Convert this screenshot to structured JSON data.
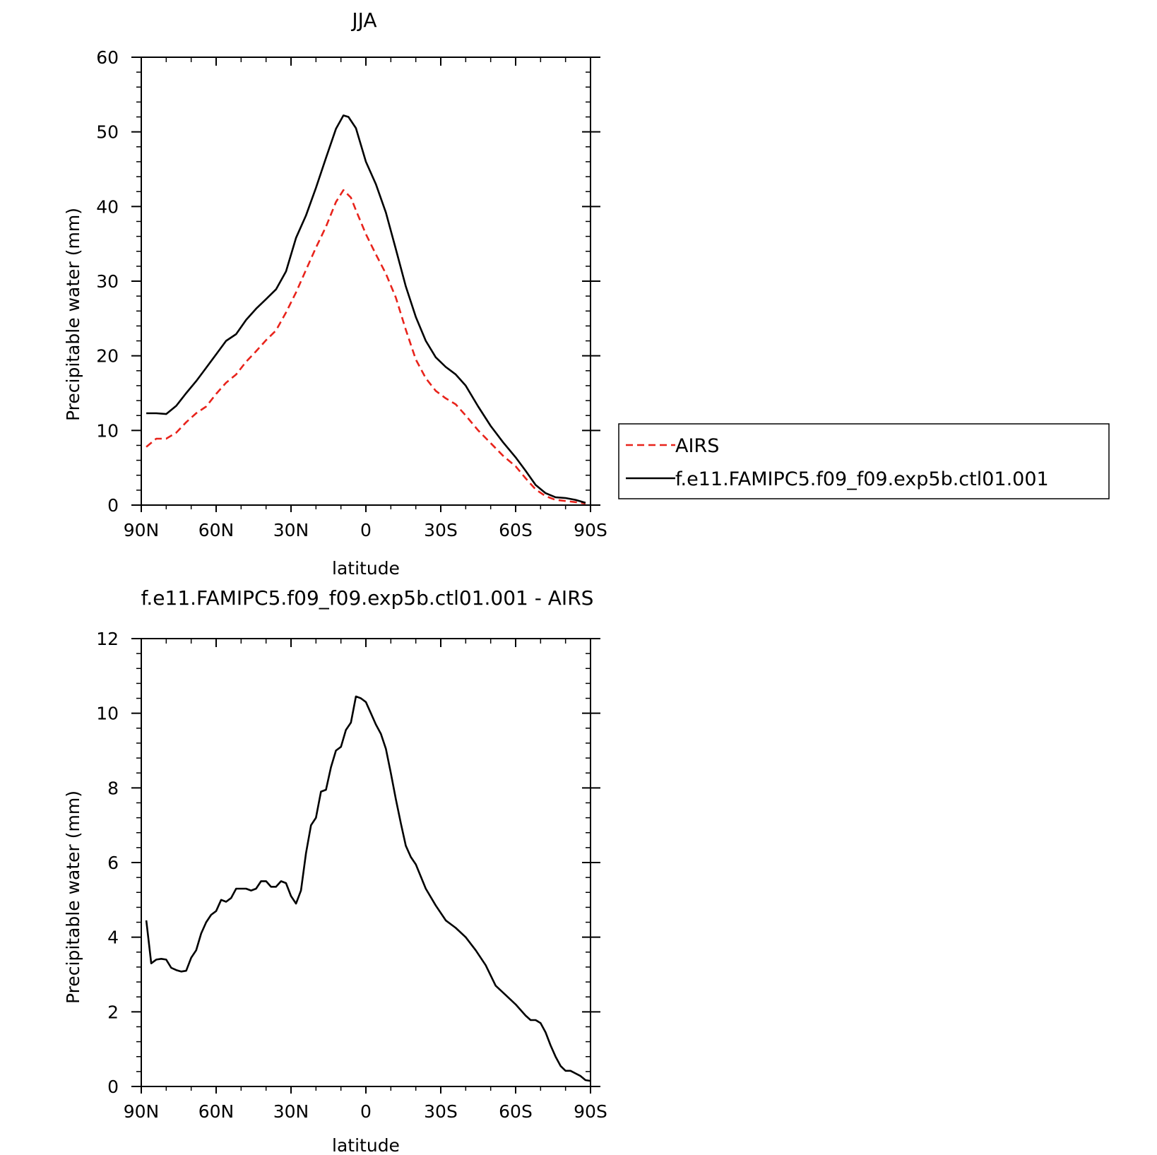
{
  "chart_data": [
    {
      "type": "line",
      "title": "JJA",
      "xlabel": "latitude",
      "ylabel": "Precipitable water (mm)",
      "xlim": [
        90,
        -90
      ],
      "ylim": [
        0,
        60
      ],
      "x_ticks": [
        90,
        60,
        30,
        0,
        -30,
        -60,
        -90
      ],
      "x_tick_labels": [
        "90N",
        "60N",
        "30N",
        "0",
        "30S",
        "60S",
        "90S"
      ],
      "y_ticks": [
        0,
        10,
        20,
        30,
        40,
        50,
        60
      ],
      "y_tick_labels": [
        "0",
        "10",
        "20",
        "30",
        "40",
        "50",
        "60"
      ],
      "grid": false,
      "legend_position": "right",
      "series": [
        {
          "name": "AIRS",
          "color": "#e8231b",
          "style": "dashed",
          "points": [
            [
              88,
              7.8
            ],
            [
              84,
              8.9
            ],
            [
              80,
              8.9
            ],
            [
              76,
              9.7
            ],
            [
              72,
              11.1
            ],
            [
              68,
              12.3
            ],
            [
              64,
              13.2
            ],
            [
              60,
              14.9
            ],
            [
              56,
              16.4
            ],
            [
              52,
              17.5
            ],
            [
              48,
              19.2
            ],
            [
              44,
              20.6
            ],
            [
              40,
              22.1
            ],
            [
              36,
              23.4
            ],
            [
              32,
              25.8
            ],
            [
              28,
              28.5
            ],
            [
              24,
              31.5
            ],
            [
              20,
              34.5
            ],
            [
              16,
              37.3
            ],
            [
              12,
              40.6
            ],
            [
              9,
              42.2
            ],
            [
              6,
              41.2
            ],
            [
              4,
              39.5
            ],
            [
              0,
              36.3
            ],
            [
              -4,
              33.6
            ],
            [
              -8,
              31.0
            ],
            [
              -12,
              27.8
            ],
            [
              -16,
              23.5
            ],
            [
              -20,
              19.5
            ],
            [
              -24,
              17.0
            ],
            [
              -28,
              15.3
            ],
            [
              -32,
              14.3
            ],
            [
              -36,
              13.5
            ],
            [
              -40,
              12.0
            ],
            [
              -45,
              10.0
            ],
            [
              -50,
              8.3
            ],
            [
              -55,
              6.6
            ],
            [
              -60,
              5.2
            ],
            [
              -64,
              3.6
            ],
            [
              -68,
              2.1
            ],
            [
              -72,
              1.2
            ],
            [
              -76,
              0.7
            ],
            [
              -80,
              0.55
            ],
            [
              -84,
              0.4
            ],
            [
              -88,
              0.2
            ]
          ]
        },
        {
          "name": "f.e11.FAMIPC5.f09_f09.exp5b.ctl01.001",
          "color": "#000000",
          "style": "solid",
          "points": [
            [
              88,
              12.3
            ],
            [
              84,
              12.3
            ],
            [
              80,
              12.2
            ],
            [
              76,
              13.3
            ],
            [
              72,
              15.0
            ],
            [
              68,
              16.6
            ],
            [
              64,
              18.4
            ],
            [
              60,
              20.2
            ],
            [
              56,
              22.0
            ],
            [
              52,
              22.9
            ],
            [
              48,
              24.8
            ],
            [
              44,
              26.3
            ],
            [
              40,
              27.6
            ],
            [
              36,
              28.9
            ],
            [
              32,
              31.3
            ],
            [
              28,
              35.8
            ],
            [
              24,
              38.8
            ],
            [
              20,
              42.5
            ],
            [
              16,
              46.5
            ],
            [
              12,
              50.4
            ],
            [
              9,
              52.2
            ],
            [
              7,
              52.0
            ],
            [
              4,
              50.5
            ],
            [
              0,
              46.0
            ],
            [
              -4,
              43.0
            ],
            [
              -8,
              39.2
            ],
            [
              -12,
              34.3
            ],
            [
              -16,
              29.3
            ],
            [
              -20,
              25.2
            ],
            [
              -24,
              22.0
            ],
            [
              -28,
              19.8
            ],
            [
              -32,
              18.5
            ],
            [
              -36,
              17.5
            ],
            [
              -40,
              16.0
            ],
            [
              -45,
              13.2
            ],
            [
              -50,
              10.6
            ],
            [
              -55,
              8.4
            ],
            [
              -60,
              6.4
            ],
            [
              -64,
              4.6
            ],
            [
              -68,
              2.7
            ],
            [
              -72,
              1.6
            ],
            [
              -76,
              1.05
            ],
            [
              -80,
              0.95
            ],
            [
              -84,
              0.7
            ],
            [
              -88,
              0.3
            ]
          ]
        }
      ]
    },
    {
      "type": "line",
      "title": "f.e11.FAMIPC5.f09_f09.exp5b.ctl01.001 - AIRS",
      "xlabel": "latitude",
      "ylabel": "Precipitable water (mm)",
      "xlim": [
        90,
        -90
      ],
      "ylim": [
        0,
        12
      ],
      "x_ticks": [
        90,
        60,
        30,
        0,
        -30,
        -60,
        -90
      ],
      "x_tick_labels": [
        "90N",
        "60N",
        "30N",
        "0",
        "30S",
        "60S",
        "90S"
      ],
      "y_ticks": [
        0,
        2,
        4,
        6,
        8,
        10,
        12
      ],
      "y_tick_labels": [
        "0",
        "2",
        "4",
        "6",
        "8",
        "10",
        "12"
      ],
      "grid": false,
      "series": [
        {
          "color": "#000000",
          "style": "solid",
          "points": [
            [
              88,
              4.45
            ],
            [
              86,
              3.3
            ],
            [
              84,
              3.4
            ],
            [
              82,
              3.42
            ],
            [
              80,
              3.4
            ],
            [
              78,
              3.18
            ],
            [
              76,
              3.12
            ],
            [
              74,
              3.08
            ],
            [
              72,
              3.1
            ],
            [
              70,
              3.45
            ],
            [
              68,
              3.65
            ],
            [
              66,
              4.1
            ],
            [
              64,
              4.4
            ],
            [
              62,
              4.6
            ],
            [
              60,
              4.7
            ],
            [
              58,
              5.0
            ],
            [
              56,
              4.95
            ],
            [
              54,
              5.05
            ],
            [
              52,
              5.3
            ],
            [
              50,
              5.3
            ],
            [
              48,
              5.3
            ],
            [
              46,
              5.25
            ],
            [
              44,
              5.3
            ],
            [
              42,
              5.5
            ],
            [
              40,
              5.5
            ],
            [
              38,
              5.35
            ],
            [
              36,
              5.35
            ],
            [
              34,
              5.5
            ],
            [
              32,
              5.45
            ],
            [
              30,
              5.1
            ],
            [
              28,
              4.9
            ],
            [
              26,
              5.25
            ],
            [
              24,
              6.25
            ],
            [
              22,
              7.0
            ],
            [
              20,
              7.2
            ],
            [
              18,
              7.9
            ],
            [
              16,
              7.95
            ],
            [
              14,
              8.55
            ],
            [
              12,
              9.0
            ],
            [
              10,
              9.1
            ],
            [
              8,
              9.55
            ],
            [
              6,
              9.75
            ],
            [
              4,
              10.45
            ],
            [
              2,
              10.4
            ],
            [
              0,
              10.3
            ],
            [
              -2,
              10.0
            ],
            [
              -4,
              9.7
            ],
            [
              -6,
              9.45
            ],
            [
              -8,
              9.05
            ],
            [
              -10,
              8.4
            ],
            [
              -12,
              7.7
            ],
            [
              -14,
              7.05
            ],
            [
              -16,
              6.45
            ],
            [
              -18,
              6.15
            ],
            [
              -20,
              5.95
            ],
            [
              -24,
              5.3
            ],
            [
              -28,
              4.85
            ],
            [
              -32,
              4.45
            ],
            [
              -36,
              4.25
            ],
            [
              -40,
              4.0
            ],
            [
              -44,
              3.65
            ],
            [
              -48,
              3.25
            ],
            [
              -52,
              2.7
            ],
            [
              -56,
              2.45
            ],
            [
              -60,
              2.2
            ],
            [
              -64,
              1.9
            ],
            [
              -66,
              1.78
            ],
            [
              -68,
              1.78
            ],
            [
              -70,
              1.7
            ],
            [
              -72,
              1.45
            ],
            [
              -74,
              1.1
            ],
            [
              -76,
              0.8
            ],
            [
              -78,
              0.55
            ],
            [
              -80,
              0.42
            ],
            [
              -82,
              0.42
            ],
            [
              -84,
              0.35
            ],
            [
              -86,
              0.28
            ],
            [
              -88,
              0.17
            ],
            [
              -90,
              0.15
            ]
          ]
        }
      ]
    }
  ]
}
